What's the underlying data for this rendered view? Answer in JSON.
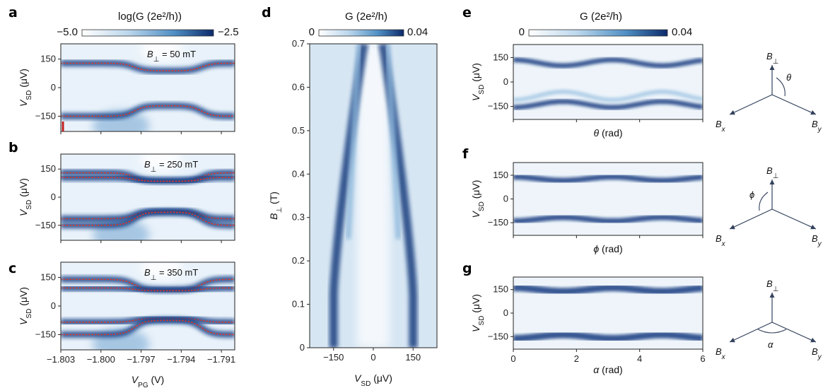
{
  "figure": {
    "panel_labels": [
      "a",
      "b",
      "c",
      "d",
      "e",
      "f",
      "g"
    ]
  },
  "chart_data": [
    {
      "id": "a",
      "type": "heatmap",
      "annotation": "B⊥ = 50 mT",
      "colorbar": {
        "label": "log(G (2e²/h))",
        "min_label": "−5.0",
        "max_label": "−2.5",
        "range": [
          -5.0,
          -2.5
        ]
      },
      "ylabel": "VSD (μV)",
      "xlabel": "",
      "xlim": [
        -1.803,
        -1.79
      ],
      "ylim": [
        -230,
        230
      ],
      "yticks": [
        150,
        0,
        -150
      ],
      "ytick_labels": [
        "150",
        "0",
        "−150"
      ],
      "xticks": [
        -1.803,
        -1.8,
        -1.797,
        -1.794,
        -1.791
      ],
      "xtick_labels": [],
      "features": {
        "upper_level_left": 125,
        "upper_level_right": 90,
        "lower_level_left": -150,
        "lower_level_right": -150,
        "marker_x": -1.803
      }
    },
    {
      "id": "b",
      "type": "heatmap",
      "annotation": "B⊥ = 250 mT",
      "ylabel": "VSD (μV)",
      "xlabel": "",
      "xlim": [
        -1.803,
        -1.79
      ],
      "ylim": [
        -230,
        230
      ],
      "yticks": [
        150,
        0,
        -150
      ],
      "ytick_labels": [
        "150",
        "0",
        "−150"
      ],
      "xticks": [
        -1.803,
        -1.8,
        -1.797,
        -1.794,
        -1.791
      ],
      "xtick_labels": []
    },
    {
      "id": "c",
      "type": "heatmap",
      "annotation": "B⊥ = 350 mT",
      "ylabel": "VSD (μV)",
      "xlabel": "VPG (V)",
      "xlim": [
        -1.803,
        -1.79
      ],
      "ylim": [
        -230,
        230
      ],
      "yticks": [
        150,
        0,
        -150
      ],
      "ytick_labels": [
        "150",
        "0",
        "−150"
      ],
      "xticks": [
        -1.803,
        -1.8,
        -1.797,
        -1.794,
        -1.791
      ],
      "xtick_labels": [
        "−1.803",
        "−1.800",
        "−1.797",
        "−1.794",
        "−1.791"
      ]
    },
    {
      "id": "d",
      "type": "heatmap",
      "colorbar": {
        "label": "G (2e²/h)",
        "min_label": "0",
        "max_label": "0.04",
        "range": [
          0,
          0.04
        ]
      },
      "xlabel": "VSD (μV)",
      "ylabel": "B⊥ (T)",
      "xlim": [
        -240,
        240
      ],
      "ylim": [
        0,
        0.7
      ],
      "xticks": [
        -150,
        0,
        150
      ],
      "xtick_labels": [
        "−150",
        "0",
        "150"
      ],
      "yticks": [
        0,
        0.1,
        0.2,
        0.3,
        0.4,
        0.5,
        0.6,
        0.7
      ],
      "ytick_labels": [
        "0",
        "0.1",
        "0.2",
        "0.3",
        "0.4",
        "0.5",
        "0.6",
        "0.7"
      ]
    },
    {
      "id": "e",
      "type": "heatmap",
      "colorbar": {
        "label": "G (2e²/h)",
        "min_label": "0",
        "max_label": "0.04",
        "range": [
          0,
          0.04
        ]
      },
      "xlabel": "θ (rad)",
      "ylabel": "VSD (μV)",
      "xlim": [
        0,
        6
      ],
      "ylim": [
        -230,
        230
      ],
      "yticks": [
        150,
        0,
        -150
      ],
      "ytick_labels": [
        "150",
        "0",
        "−150"
      ],
      "xticks": [
        0,
        2,
        4,
        6
      ],
      "xtick_labels": [],
      "diagram": {
        "axes": [
          "B⊥",
          "Bx",
          "By"
        ],
        "angle": "θ"
      }
    },
    {
      "id": "f",
      "type": "heatmap",
      "xlabel": "ϕ (rad)",
      "ylabel": "VSD (μV)",
      "xlim": [
        0,
        6
      ],
      "ylim": [
        -230,
        230
      ],
      "yticks": [
        150,
        0,
        -150
      ],
      "ytick_labels": [
        "150",
        "0",
        "−150"
      ],
      "xticks": [
        0,
        2,
        4,
        6
      ],
      "xtick_labels": [],
      "diagram": {
        "axes": [
          "B⊥",
          "Bx",
          "By"
        ],
        "angle": "ϕ"
      }
    },
    {
      "id": "g",
      "type": "heatmap",
      "xlabel": "α (rad)",
      "ylabel": "VSD (μV)",
      "xlim": [
        0,
        6
      ],
      "ylim": [
        -230,
        230
      ],
      "yticks": [
        150,
        0,
        -150
      ],
      "ytick_labels": [
        "150",
        "0",
        "−150"
      ],
      "xticks": [
        0,
        2,
        4,
        6
      ],
      "xtick_labels": [
        "0",
        "2",
        "4",
        "6"
      ],
      "diagram": {
        "axes": [
          "B⊥",
          "Bx",
          "By"
        ],
        "angle": "α"
      }
    }
  ]
}
